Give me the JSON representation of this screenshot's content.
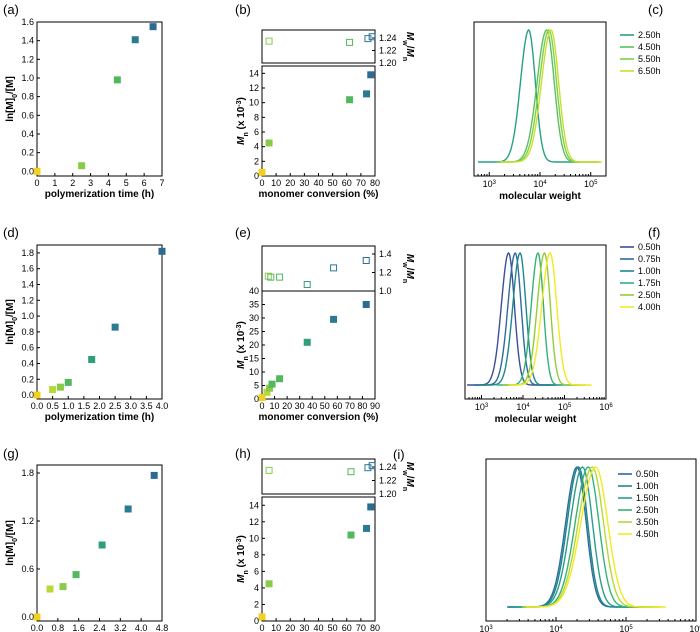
{
  "figure": {
    "colors": {
      "c050": "#3b4f9a",
      "c075": "#2e6b9e",
      "c100": "#1f878c",
      "c150": "#2a9d8f",
      "c175": "#35b178",
      "c250h": "#27a085",
      "c250": "#93cc3b",
      "c350": "#b5d93a",
      "c450": "#5cc15d",
      "c550": "#7ed04f",
      "c650": "#c9e02a",
      "c400": "#f1ea21",
      "c000": "#f2d52b",
      "cA1": "#c9db2a",
      "cA2": "#5bc15e",
      "cA3": "#33ae85",
      "cA4": "#2a7b8a",
      "cE1": "#f0d223",
      "cE2": "#b7d73a",
      "cE3": "#89cb49",
      "cE4": "#52b85d",
      "cE5": "#2f9e7d",
      "cE6": "#2c7a92",
      "cE7": "#2b6c90"
    }
  },
  "chart_data": [
    {
      "panel": "(a)",
      "type": "scatter",
      "xlabel": "polymerization time (h)",
      "ylabel": "ln[M]0/[M]",
      "xlim": [
        0,
        7
      ],
      "ylim": [
        -0.05,
        1.6
      ],
      "xticks": [
        "0",
        "1",
        "2",
        "3",
        "4",
        "5",
        "6",
        "7"
      ],
      "yticks": [
        "0.0",
        "0.2",
        "0.4",
        "0.6",
        "0.8",
        "1.0",
        "1.2",
        "1.4",
        "1.6"
      ],
      "points": [
        [
          0,
          0.0
        ],
        [
          2.5,
          0.06
        ],
        [
          4.5,
          0.98
        ],
        [
          5.5,
          1.41
        ],
        [
          6.5,
          1.55
        ]
      ]
    },
    {
      "panel": "(b)",
      "type": "scatter",
      "xlabel": "monomer conversion (%)",
      "ylabel_top": "Mw/Mn",
      "ylabel_bottom": "Mn (x 10^-3)",
      "xlim": [
        0,
        80
      ],
      "ylim_bottom": [
        0,
        15
      ],
      "ylim_top": [
        1.2,
        1.24
      ],
      "xticks": [
        "0",
        "10",
        "20",
        "30",
        "40",
        "50",
        "60",
        "70",
        "80"
      ],
      "yticks_bottom": [
        "0",
        "2",
        "4",
        "6",
        "8",
        "10",
        "12",
        "14"
      ],
      "yticks_top": [
        "1.20",
        "1.22",
        "1.24"
      ],
      "mn_points": [
        [
          0,
          0.5
        ],
        [
          5,
          4.5
        ],
        [
          62,
          10.4
        ],
        [
          74,
          11.2
        ],
        [
          77,
          13.8
        ]
      ],
      "pdi_points": [
        [
          5,
          1.235
        ],
        [
          62,
          1.233
        ],
        [
          75,
          1.239
        ],
        [
          78,
          1.242
        ]
      ]
    },
    {
      "panel": "(c)",
      "type": "line",
      "xlabel": "molecular weight",
      "xscale": "log",
      "xlim": [
        500,
        200000
      ],
      "xtick_labels": [
        "10",
        "10",
        "10"
      ],
      "xtick_exponents": [
        "3",
        "4",
        "5"
      ],
      "series": [
        {
          "name": "2.50h",
          "center": 6000,
          "width": 0.13
        },
        {
          "name": "4.50h",
          "center": 13500,
          "width": 0.15
        },
        {
          "name": "5.50h",
          "center": 15000,
          "width": 0.15
        },
        {
          "name": "6.50h",
          "center": 16500,
          "width": 0.15
        }
      ]
    },
    {
      "panel": "(d)",
      "type": "scatter",
      "xlabel": "polymerization time (h)",
      "ylabel": "ln[M]0/[M]",
      "xlim": [
        0,
        4
      ],
      "ylim": [
        -0.05,
        1.9
      ],
      "xticks": [
        "0.0",
        "0.5",
        "1.0",
        "1.5",
        "2.0",
        "2.5",
        "3.0",
        "3.5",
        "4.0"
      ],
      "yticks": [
        "0.0",
        "0.2",
        "0.4",
        "0.6",
        "0.8",
        "1.0",
        "1.2",
        "1.4",
        "1.6",
        "1.8"
      ],
      "points": [
        [
          0,
          0.0
        ],
        [
          0.5,
          0.07
        ],
        [
          0.75,
          0.1
        ],
        [
          1.0,
          0.16
        ],
        [
          1.75,
          0.45
        ],
        [
          2.5,
          0.86
        ],
        [
          4.0,
          1.82
        ]
      ]
    },
    {
      "panel": "(e)",
      "type": "scatter",
      "xlabel": "monomer conversion (%)",
      "ylabel_top": "Mw/Mn",
      "ylabel_bottom": "Mn (x 10^-3)",
      "xlim": [
        0,
        90
      ],
      "ylim_bottom": [
        0,
        40
      ],
      "ylim_top": [
        1.0,
        1.4
      ],
      "xticks": [
        "0",
        "10",
        "20",
        "30",
        "40",
        "50",
        "60",
        "70",
        "80",
        "90"
      ],
      "yticks_bottom": [
        "0",
        "5",
        "10",
        "15",
        "20",
        "25",
        "30",
        "35",
        "40"
      ],
      "yticks_top": [
        "1.0",
        "1.2",
        "1.4"
      ],
      "mn_points": [
        [
          0,
          0.5
        ],
        [
          4,
          2.5
        ],
        [
          6,
          4
        ],
        [
          8,
          5.5
        ],
        [
          14,
          7.5
        ],
        [
          36,
          21
        ],
        [
          57,
          29.5
        ],
        [
          83,
          35
        ]
      ],
      "pdi_points": [
        [
          5,
          1.16
        ],
        [
          7,
          1.15
        ],
        [
          14,
          1.15
        ],
        [
          36,
          1.07
        ],
        [
          57,
          1.25
        ],
        [
          83,
          1.33
        ]
      ]
    },
    {
      "panel": "(f)",
      "type": "line",
      "xlabel": "molecular weight",
      "xscale": "log",
      "xlim": [
        400,
        1000000
      ],
      "xtick_labels": [
        "10",
        "10",
        "10",
        "10"
      ],
      "xtick_exponents": [
        "3",
        "4",
        "5",
        "6"
      ],
      "series": [
        {
          "name": "0.50h",
          "center": 4500,
          "width": 0.14
        },
        {
          "name": "0.75h",
          "center": 6500,
          "width": 0.14
        },
        {
          "name": "1.00h",
          "center": 8500,
          "width": 0.14
        },
        {
          "name": "1.75h",
          "center": 23000,
          "width": 0.13
        },
        {
          "name": "2.50h",
          "center": 33000,
          "width": 0.14
        },
        {
          "name": "4.00h",
          "center": 45000,
          "width": 0.16
        }
      ]
    },
    {
      "panel": "(g)",
      "type": "scatter",
      "xlabel": "polymerization time (h)",
      "ylabel": "ln[M]0/[M]",
      "xlim": [
        0,
        4.8
      ],
      "ylim": [
        -0.05,
        1.9
      ],
      "xticks": [
        "0.0",
        "0.8",
        "1.6",
        "2.4",
        "3.2",
        "4.0",
        "4.8"
      ],
      "yticks": [
        "0.0",
        "0.6",
        "1.2",
        "1.8"
      ],
      "points": [
        [
          0,
          0.0
        ],
        [
          0.5,
          0.35
        ],
        [
          1.0,
          0.38
        ],
        [
          1.5,
          0.53
        ],
        [
          2.5,
          0.9
        ],
        [
          3.5,
          1.35
        ],
        [
          4.5,
          1.77
        ]
      ]
    },
    {
      "panel": "(h)",
      "type": "scatter",
      "xlabel": "monomer conversion (%)",
      "ylabel_top": "Mw/Mn",
      "ylabel_bottom": "Mn (x 10^-3)",
      "xlim": [
        0,
        80
      ],
      "ylim_bottom": [
        0,
        15
      ],
      "ylim_top": [
        1.2,
        1.24
      ],
      "xticks": [
        "0",
        "10",
        "20",
        "30",
        "40",
        "50",
        "60",
        "70",
        "80"
      ],
      "yticks_bottom": [
        "0",
        "2",
        "4",
        "6",
        "8",
        "10",
        "12",
        "14"
      ],
      "yticks_top": [
        "1.20",
        "1.22",
        "1.24"
      ],
      "mn_points": [
        [
          0,
          0.5
        ],
        [
          5,
          4.5
        ],
        [
          63,
          10.4
        ],
        [
          74,
          11.2
        ],
        [
          77,
          13.8
        ]
      ],
      "pdi_points": [
        [
          5,
          1.235
        ],
        [
          63,
          1.233
        ],
        [
          75,
          1.239
        ],
        [
          78,
          1.242
        ]
      ]
    },
    {
      "panel": "(i)",
      "type": "line",
      "xlabel": "molecular weight",
      "xscale": "log",
      "xlim": [
        1000,
        1000000
      ],
      "xtick_labels": [
        "10",
        "10",
        "10",
        "10"
      ],
      "xtick_exponents": [
        "3",
        "4",
        "5",
        "6"
      ],
      "series": [
        {
          "name": "0.50h",
          "center": 20000,
          "width": 0.13
        },
        {
          "name": "1.00h",
          "center": 21000,
          "width": 0.13
        },
        {
          "name": "1.50h",
          "center": 24000,
          "width": 0.14
        },
        {
          "name": "2.50h",
          "center": 29000,
          "width": 0.15
        },
        {
          "name": "3.50h",
          "center": 33000,
          "width": 0.16
        },
        {
          "name": "4.50h",
          "center": 37000,
          "width": 0.17
        }
      ]
    }
  ]
}
